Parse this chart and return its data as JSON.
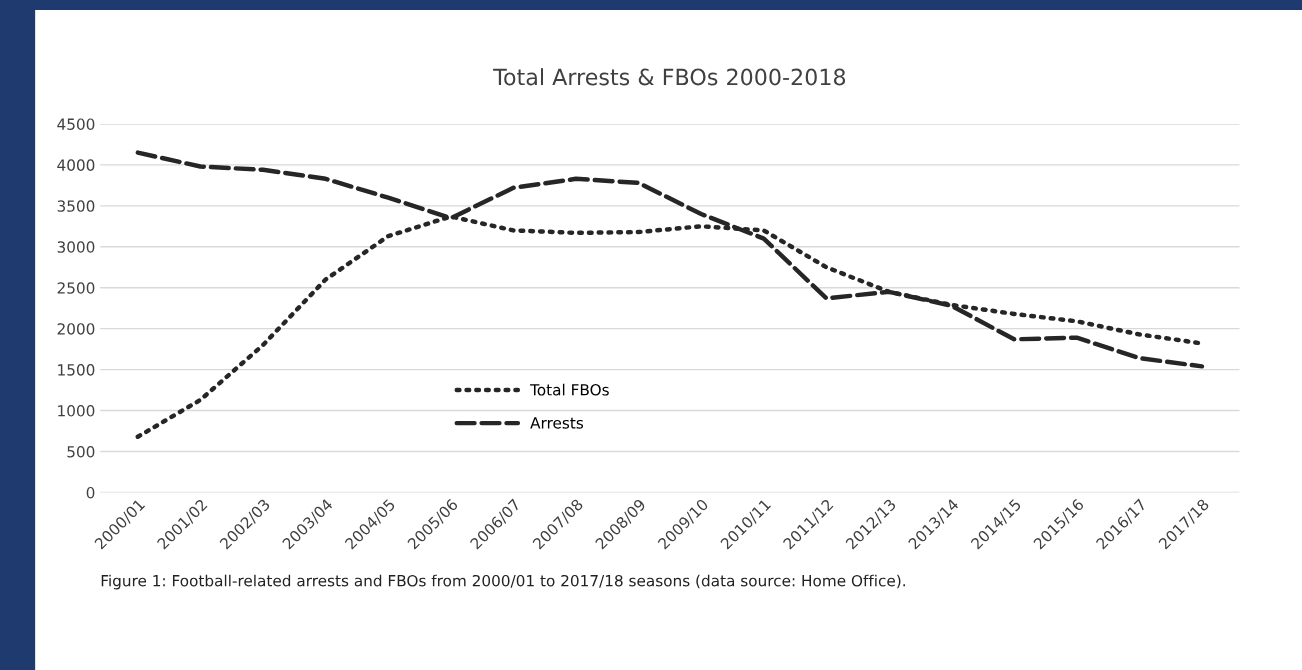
{
  "chart_data": {
    "type": "line",
    "title": "Total Arrests & FBOs 2000-2018",
    "categories": [
      "2000/01",
      "2001/02",
      "2002/03",
      "2003/04",
      "2004/05",
      "2005/06",
      "2006/07",
      "2007/08",
      "2008/09",
      "2009/10",
      "2010/11",
      "2011/12",
      "2012/13",
      "2013/14",
      "2014/15",
      "2015/16",
      "2016/17",
      "2017/18"
    ],
    "series": [
      {
        "name": "Total FBOs",
        "color": "#262626",
        "line_style": "dotted",
        "values": [
          680,
          1130,
          1800,
          2600,
          3130,
          3370,
          3200,
          3170,
          3180,
          3250,
          3200,
          2750,
          2450,
          2290,
          2180,
          2090,
          1930,
          1820
        ]
      },
      {
        "name": "Arrests",
        "color": "#262626",
        "line_style": "dashed",
        "values": [
          4150,
          3980,
          3940,
          3830,
          3600,
          3350,
          3720,
          3830,
          3780,
          3400,
          3100,
          2370,
          2450,
          2280,
          1870,
          1890,
          1640,
          1540
        ]
      }
    ],
    "ylim": [
      0,
      4500
    ],
    "yticks": [
      0,
      500,
      1000,
      1500,
      2000,
      2500,
      3000,
      3500,
      4000,
      4500
    ],
    "grid": "y",
    "legend": "bottom",
    "marker": "none",
    "annotations": [
      "Figure 1: Football-related arrests and FBOs from 2000/01 to 2017/18 seasons (data source: Home Office)."
    ]
  }
}
